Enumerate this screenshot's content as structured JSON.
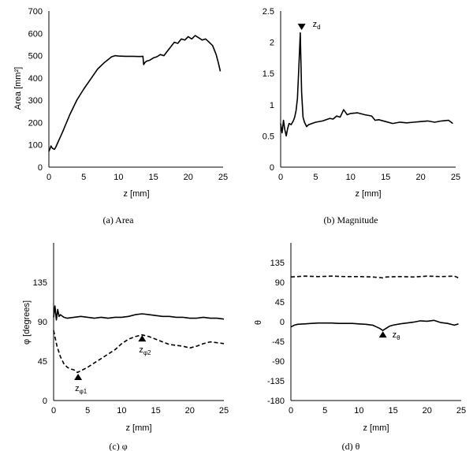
{
  "chart_data": [
    {
      "type": "line",
      "caption": "(a) Area",
      "xlabel": "z [mm]",
      "ylabel": "Area [mm²]",
      "xlim": [
        0,
        25
      ],
      "ylim": [
        0,
        700
      ],
      "xticks": [
        "0",
        "5",
        "10",
        "15",
        "20",
        "25"
      ],
      "yticks": [
        "0",
        "100",
        "200",
        "300",
        "400",
        "500",
        "600",
        "700"
      ],
      "series": [
        {
          "style": "solid",
          "x": [
            0,
            0.3,
            0.5,
            0.8,
            1,
            2,
            3,
            4,
            5,
            6,
            7,
            8,
            9,
            9.5,
            10,
            11,
            12,
            13,
            13.5,
            13.6,
            13.8,
            14,
            14.5,
            15,
            15.5,
            16,
            16.5,
            17,
            17.5,
            18,
            18.5,
            19,
            19.5,
            20,
            20.5,
            21,
            21.5,
            22,
            22.5,
            23,
            23.5,
            24,
            24.3,
            24.6
          ],
          "y": [
            70,
            95,
            85,
            80,
            90,
            160,
            235,
            300,
            350,
            395,
            440,
            470,
            495,
            500,
            498,
            497,
            497,
            496,
            497,
            460,
            470,
            475,
            480,
            490,
            495,
            505,
            500,
            520,
            540,
            560,
            555,
            575,
            570,
            585,
            575,
            590,
            580,
            570,
            575,
            560,
            545,
            505,
            470,
            430
          ]
        }
      ],
      "annotations": []
    },
    {
      "type": "line",
      "caption": "(b) Magnitude",
      "xlabel": "z [mm]",
      "ylabel": "",
      "xlim": [
        0,
        25
      ],
      "ylim": [
        0,
        2.5
      ],
      "xticks": [
        "0",
        "5",
        "10",
        "15",
        "20",
        "25"
      ],
      "yticks": [
        "0",
        "0.5",
        "1",
        "1.5",
        "2",
        "2.5"
      ],
      "series": [
        {
          "style": "solid",
          "x": [
            0,
            0.2,
            0.4,
            0.6,
            0.8,
            1,
            1.2,
            1.5,
            1.8,
            2,
            2.2,
            2.4,
            2.6,
            2.8,
            3,
            3.2,
            3.4,
            3.7,
            4,
            5,
            6,
            7,
            7.5,
            8,
            8.5,
            9,
            9.5,
            10,
            11,
            12,
            13,
            13.5,
            14,
            15,
            16,
            17,
            18,
            19,
            20,
            21,
            22,
            23,
            24,
            24.6
          ],
          "y": [
            0.7,
            0.55,
            0.75,
            0.6,
            0.5,
            0.62,
            0.7,
            0.68,
            0.74,
            0.8,
            0.9,
            1.1,
            1.6,
            2.15,
            1.2,
            0.8,
            0.72,
            0.65,
            0.68,
            0.72,
            0.74,
            0.78,
            0.77,
            0.82,
            0.8,
            0.92,
            0.84,
            0.86,
            0.87,
            0.84,
            0.82,
            0.75,
            0.76,
            0.73,
            0.7,
            0.72,
            0.71,
            0.72,
            0.73,
            0.74,
            0.72,
            0.74,
            0.75,
            0.7
          ]
        }
      ],
      "annotations": [
        {
          "label": "zd",
          "x": 3,
          "y": 2.22,
          "dir": "down"
        }
      ]
    },
    {
      "type": "line",
      "caption": "(c) φ",
      "xlabel": "z [mm]",
      "ylabel": "φ [degrees]",
      "xlim": [
        0,
        25
      ],
      "ylim": [
        0,
        180
      ],
      "xticks": [
        "0",
        "5",
        "10",
        "15",
        "20",
        "25"
      ],
      "yticks": [
        "0",
        "45",
        "90",
        "135"
      ],
      "series": [
        {
          "style": "solid",
          "x": [
            0,
            0.2,
            0.4,
            0.6,
            0.8,
            1,
            1.5,
            2,
            3,
            4,
            5,
            6,
            7,
            8,
            9,
            10,
            11,
            12,
            13,
            14,
            15,
            16,
            17,
            18,
            19,
            20,
            21,
            22,
            23,
            24,
            25
          ],
          "y": [
            95,
            108,
            92,
            104,
            96,
            98,
            95,
            94,
            95,
            96,
            95,
            94,
            95,
            94,
            95,
            95,
            96,
            98,
            99,
            98,
            97,
            96,
            96,
            95,
            95,
            94,
            94,
            95,
            94,
            94,
            93
          ]
        },
        {
          "style": "dashed",
          "x": [
            0,
            0.5,
            1,
            1.5,
            2,
            2.5,
            3,
            3.5,
            4,
            5,
            6,
            7,
            8,
            9,
            10,
            11,
            12,
            13,
            14,
            15,
            16,
            17,
            18,
            19,
            20,
            21,
            22,
            23,
            24,
            25
          ],
          "y": [
            80,
            62,
            50,
            42,
            38,
            36,
            35,
            32,
            34,
            38,
            43,
            48,
            53,
            58,
            65,
            70,
            73,
            75,
            73,
            70,
            67,
            64,
            63,
            62,
            60,
            62,
            65,
            67,
            66,
            65
          ]
        }
      ],
      "annotations": [
        {
          "label": "zφ1",
          "x": 3.6,
          "y": 27,
          "dir": "up"
        },
        {
          "label": "zφ2",
          "x": 13,
          "y": 71,
          "dir": "up"
        }
      ]
    },
    {
      "type": "line",
      "caption": "(d) θ",
      "xlabel": "z [mm]",
      "ylabel": "θ",
      "xlim": [
        0,
        25
      ],
      "ylim": [
        -180,
        180
      ],
      "xticks": [
        "0",
        "5",
        "10",
        "15",
        "20",
        "25"
      ],
      "yticks": [
        "-180",
        "-135",
        "-90",
        "-45",
        "0",
        "45",
        "90",
        "135"
      ],
      "series": [
        {
          "style": "solid",
          "x": [
            0,
            0.5,
            1,
            2,
            3,
            4,
            5,
            6,
            7,
            8,
            9,
            10,
            11,
            12,
            13,
            13.5,
            14,
            14.5,
            15,
            16,
            17,
            18,
            19,
            20,
            21,
            22,
            23,
            24,
            24.6
          ],
          "y": [
            -12,
            -8,
            -6,
            -5,
            -4,
            -3,
            -3,
            -3,
            -4,
            -4,
            -4,
            -5,
            -6,
            -8,
            -15,
            -20,
            -15,
            -10,
            -8,
            -5,
            -3,
            -1,
            2,
            1,
            3,
            -2,
            -4,
            -8,
            -5
          ]
        },
        {
          "style": "dashed",
          "x": [
            0,
            2,
            4,
            6,
            8,
            10,
            12,
            13.5,
            14,
            16,
            18,
            20,
            22,
            24,
            24.6
          ],
          "y": [
            102,
            104,
            103,
            104,
            103,
            103,
            102,
            100,
            102,
            103,
            102,
            104,
            103,
            104,
            100
          ]
        }
      ],
      "annotations": [
        {
          "label": "zθ",
          "x": 13.5,
          "y": -29,
          "dir": "up"
        }
      ]
    }
  ]
}
